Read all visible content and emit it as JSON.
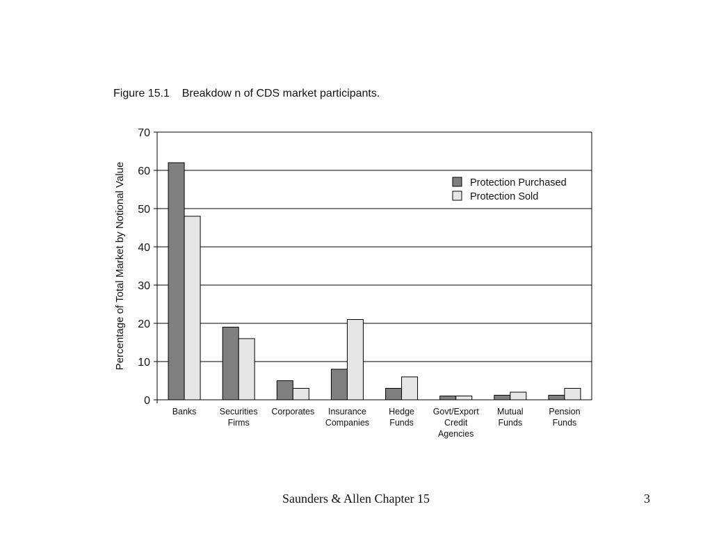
{
  "figure_title": "Figure 15.1    Breakdow n of CDS market participants.",
  "footer": {
    "source": "Saunders & Allen Chapter 15",
    "page_number": "3"
  },
  "chart_data": {
    "type": "bar",
    "title": "",
    "ylabel": "Percentage of Total Market by Notional Value",
    "xlabel": "",
    "ylim": [
      0,
      70
    ],
    "yticks": [
      0,
      10,
      20,
      30,
      40,
      50,
      60,
      70
    ],
    "grid": true,
    "legend_position": "top-right",
    "categories": [
      [
        "Banks"
      ],
      [
        "Securities",
        "Firms"
      ],
      [
        "Corporates"
      ],
      [
        "Insurance",
        "Companies"
      ],
      [
        "Hedge",
        "Funds"
      ],
      [
        "Govt/Export",
        "Credit",
        "Agencies"
      ],
      [
        "Mutual",
        "Funds"
      ],
      [
        "Pension",
        "Funds"
      ]
    ],
    "series": [
      {
        "name": "Protection Purchased",
        "color": "#808080",
        "values": [
          62,
          19,
          5,
          8,
          3,
          1,
          1.2,
          1.2
        ]
      },
      {
        "name": "Protection Sold",
        "color": "#e6e6e6",
        "values": [
          48,
          16,
          3,
          21,
          6,
          1,
          2,
          3
        ]
      }
    ]
  }
}
